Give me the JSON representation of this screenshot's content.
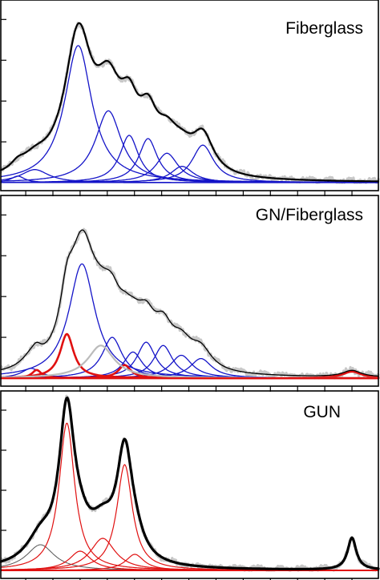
{
  "chart_data": [
    {
      "type": "line",
      "title": "Fiberglass",
      "xlabel": "",
      "ylabel": "",
      "xlim": [
        0,
        1000
      ],
      "ylim": [
        0,
        1.08
      ],
      "grid": false,
      "colors": {
        "envelope": "#000000",
        "raw": "#c8c8c8",
        "component": "#1414c8"
      },
      "components": [
        {
          "name": "",
          "center": 45,
          "amp": 0.04,
          "width": 22
        },
        {
          "name": "",
          "center": 90,
          "amp": 0.08,
          "width": 45
        },
        {
          "name": "",
          "center": 205,
          "amp": 0.84,
          "width": 44
        },
        {
          "name": "",
          "center": 285,
          "amp": 0.44,
          "width": 42
        },
        {
          "name": "",
          "center": 340,
          "amp": 0.29,
          "width": 30
        },
        {
          "name": "",
          "center": 390,
          "amp": 0.27,
          "width": 30
        },
        {
          "name": "",
          "center": 440,
          "amp": 0.18,
          "width": 36
        },
        {
          "name": "",
          "center": 480,
          "amp": 0.1,
          "width": 36
        },
        {
          "name": "",
          "center": 535,
          "amp": 0.23,
          "width": 35
        }
      ]
    },
    {
      "type": "line",
      "title": "GN/Fiberglass",
      "xlabel": "",
      "ylabel": "",
      "xlim": [
        0,
        1000
      ],
      "ylim": [
        0,
        1.08
      ],
      "grid": false,
      "colors": {
        "envelope": "#000000",
        "raw": "#c8c8c8",
        "component": "#1414c8",
        "gn_component": "#e01010",
        "broad": "#bbbbbb"
      },
      "components": [
        {
          "name": "",
          "center": 80,
          "amp": 0.06,
          "width": 30,
          "group": "blue"
        },
        {
          "name": "",
          "center": 215,
          "amp": 0.7,
          "width": 42,
          "group": "blue"
        },
        {
          "name": "",
          "center": 295,
          "amp": 0.25,
          "width": 32,
          "group": "blue"
        },
        {
          "name": "",
          "center": 350,
          "amp": 0.16,
          "width": 30,
          "group": "blue"
        },
        {
          "name": "",
          "center": 385,
          "amp": 0.22,
          "width": 30,
          "group": "blue"
        },
        {
          "name": "",
          "center": 430,
          "amp": 0.2,
          "width": 30,
          "group": "blue"
        },
        {
          "name": "",
          "center": 478,
          "amp": 0.14,
          "width": 35,
          "group": "blue"
        },
        {
          "name": "",
          "center": 530,
          "amp": 0.12,
          "width": 35,
          "group": "blue"
        },
        {
          "name": "",
          "center": 95,
          "amp": 0.05,
          "width": 15,
          "group": "red"
        },
        {
          "name": "",
          "center": 175,
          "amp": 0.27,
          "width": 22,
          "group": "red"
        },
        {
          "name": "",
          "center": 328,
          "amp": 0.08,
          "width": 20,
          "group": "red"
        },
        {
          "name": "",
          "center": 930,
          "amp": 0.04,
          "width": 30,
          "group": "red"
        },
        {
          "name": "",
          "center": 265,
          "amp": 0.2,
          "width": 42,
          "group": "gray"
        }
      ]
    },
    {
      "type": "line",
      "title": "GUN",
      "xlabel": "",
      "ylabel": "",
      "xlim": [
        0,
        1000
      ],
      "ylim": [
        0,
        1.08
      ],
      "grid": false,
      "colors": {
        "envelope": "#000000",
        "raw": "#c8c8c8",
        "component": "#e01010",
        "secondary": "#555555"
      },
      "components": [
        {
          "name": "",
          "center": 105,
          "amp": 0.16,
          "width": 45,
          "group": "gray"
        },
        {
          "name": "",
          "center": 175,
          "amp": 0.92,
          "width": 25,
          "group": "red"
        },
        {
          "name": "",
          "center": 210,
          "amp": 0.12,
          "width": 35,
          "group": "red"
        },
        {
          "name": "",
          "center": 270,
          "amp": 0.2,
          "width": 40,
          "group": "red"
        },
        {
          "name": "",
          "center": 328,
          "amp": 0.66,
          "width": 25,
          "group": "red"
        },
        {
          "name": "",
          "center": 355,
          "amp": 0.1,
          "width": 30,
          "group": "red"
        },
        {
          "name": "",
          "center": 930,
          "amp": 0.2,
          "width": 14,
          "group": "black"
        }
      ]
    }
  ]
}
